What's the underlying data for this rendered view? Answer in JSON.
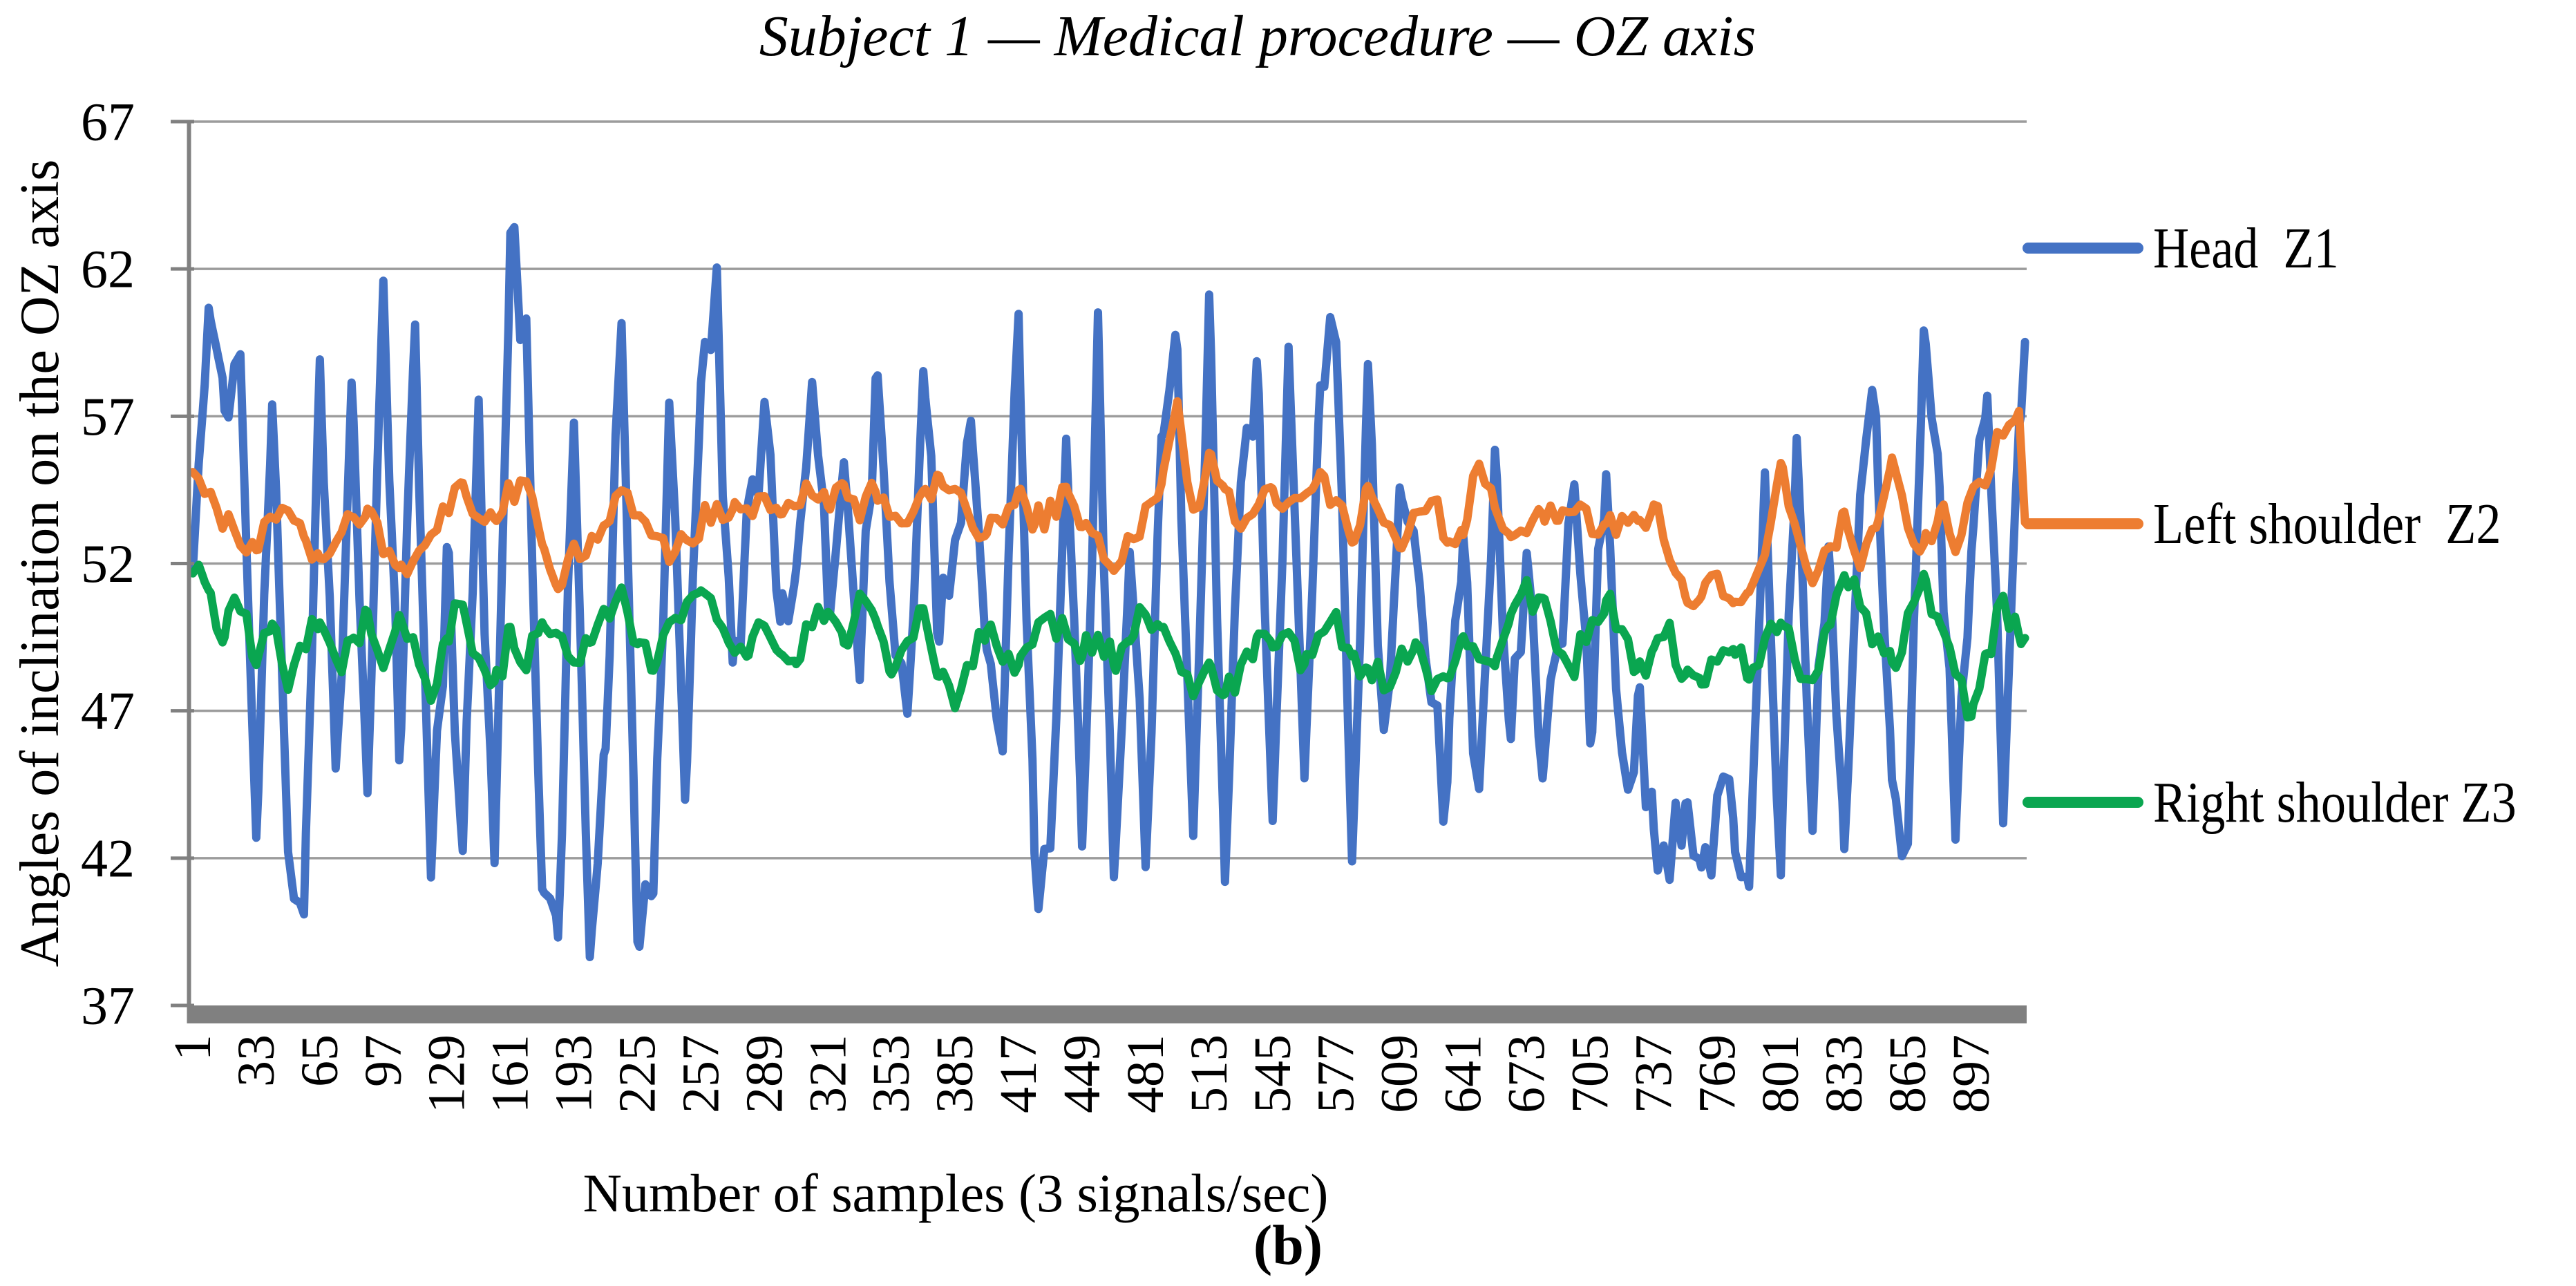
{
  "title": "Subject 1 — Medical procedure — OZ axis",
  "caption": "(b)",
  "colors": {
    "blue": "#4472C4",
    "orange": "#ED7D31",
    "green": "#0AA650",
    "grid": "#9C9C9C",
    "axis": "#808080",
    "text": "#000000"
  },
  "chart_data": {
    "type": "line",
    "title": "Subject 1 — Medical procedure — OZ axis",
    "xlabel": "Number of samples (3 signals/sec)",
    "ylabel": "Angles of inclination on the OZ axis",
    "ylim": [
      37,
      67
    ],
    "yticks": [
      37,
      42,
      47,
      52,
      57,
      62,
      67
    ],
    "xticks": [
      1,
      33,
      65,
      97,
      129,
      161,
      193,
      225,
      257,
      289,
      321,
      353,
      385,
      417,
      449,
      481,
      513,
      545,
      577,
      609,
      641,
      673,
      705,
      737,
      769,
      801,
      833,
      865,
      897
    ],
    "x_range": [
      1,
      924
    ],
    "grid": "horizontal",
    "legend_position": "right",
    "anchor_start": 1,
    "anchor_step": 8,
    "series": [
      {
        "name": "Head  Z1",
        "color": "#4472C4",
        "noise_amplitude": 1.7,
        "noise_step": 3,
        "anchors": [
          53,
          61.5,
          56,
          58.5,
          44,
          57,
          42,
          38.7,
          59,
          45,
          57.5,
          44,
          60.5,
          46,
          60.8,
          42,
          52,
          41.5,
          56,
          42,
          63,
          59,
          42,
          40,
          58,
          39.5,
          45,
          61.5,
          40,
          39.7,
          57,
          44,
          57,
          60.5,
          48,
          53,
          57,
          49,
          53,
          59,
          51,
          56,
          49,
          58,
          52,
          46,
          58,
          50,
          53,
          57,
          50,
          46,
          61,
          42,
          41,
          56,
          42,
          60,
          41.5,
          52,
          42,
          57,
          59,
          42,
          60.5,
          41,
          55,
          59,
          44,
          58,
          44,
          58,
          61,
          43,
          58,
          45,
          55,
          51,
          47,
          44,
          53,
          43,
          56,
          46,
          52,
          45,
          50,
          53,
          46,
          56,
          44,
          47,
          42,
          41.5,
          44,
          41,
          43,
          44,
          41,
          55,
          41,
          57,
          44,
          52,
          41.5,
          55,
          57,
          44,
          42,
          59,
          55,
          43,
          53,
          58,
          44,
          58,
          60
        ]
      },
      {
        "name": "Left shoulder  Z2",
        "color": "#ED7D31",
        "noise_amplitude": 0.5,
        "noise_step": 3,
        "anchors": [
          54.8,
          54.2,
          53.6,
          53,
          52.6,
          53.4,
          54.2,
          52.8,
          52.2,
          52.8,
          53.4,
          54.2,
          52.6,
          51.8,
          52.4,
          53,
          53.8,
          54.4,
          53.2,
          53.6,
          54.4,
          54.8,
          52.6,
          51.6,
          52.2,
          52.8,
          53.4,
          54.2,
          53.6,
          53,
          52.4,
          52.8,
          53.4,
          54,
          53.6,
          54,
          54.4,
          53.8,
          54.2,
          54.6,
          54,
          54.6,
          53.8,
          54.4,
          53.8,
          53.2,
          54.2,
          54.8,
          54.2,
          53.6,
          53,
          53.8,
          54.4,
          53.4,
          53.8,
          54.4,
          53.2,
          52.6,
          52,
          52.8,
          53.6,
          54.6,
          57.6,
          53.4,
          55.6,
          54.2,
          53.4,
          54,
          54.6,
          53.6,
          54.4,
          55.2,
          53.8,
          53,
          54.2,
          53.2,
          52.8,
          53.6,
          54.4,
          53,
          52.6,
          55.6,
          53.6,
          52.8,
          53.2,
          53.8,
          53.2,
          54,
          53.4,
          53,
          53.6,
          53.2,
          53.8,
          52.4,
          51.2,
          50.8,
          51.4,
          50.8,
          51.2,
          52.6,
          55,
          53.2,
          51.4,
          52.4,
          53.6,
          51.8,
          53,
          55.8,
          53.4,
          52.6,
          53.8,
          52.8,
          54,
          55.2,
          56.6,
          57.6,
          53.8
        ]
      },
      {
        "name": "Right shoulder Z3",
        "color": "#0AA650",
        "noise_amplitude": 0.55,
        "noise_step": 3,
        "anchors": [
          52,
          50.6,
          49.6,
          50.8,
          48.6,
          49.8,
          48.2,
          49.4,
          50.4,
          48.6,
          49.2,
          50,
          48.2,
          50.4,
          49,
          47.6,
          49.8,
          50.4,
          48.6,
          47.8,
          49.6,
          48.4,
          50.2,
          49.4,
          48.8,
          49.2,
          50.4,
          50.8,
          49.4,
          48.8,
          49.6,
          50.2,
          50.8,
          50.4,
          49.6,
          48.8,
          50.2,
          49.4,
          48.8,
          49.8,
          50.4,
          49.2,
          50.6,
          49.8,
          48.6,
          49.2,
          50.2,
          48.4,
          47.4,
          48.6,
          49.8,
          49.2,
          48.6,
          49.4,
          50.2,
          49.6,
          48.8,
          49.8,
          48.6,
          49.2,
          50.6,
          49.4,
          48.8,
          48,
          48.8,
          47.6,
          48.4,
          49.6,
          48.8,
          49.8,
          48.6,
          49.2,
          49.8,
          48.4,
          48.8,
          47.8,
          48.6,
          49.4,
          47.6,
          48.4,
          49.6,
          48.8,
          48,
          50.2,
          51.2,
          50.4,
          49.4,
          48.6,
          49.8,
          51,
          49.6,
          48.4,
          48.8,
          49.6,
          48.2,
          47.6,
          48.8,
          49.6,
          48.4,
          49.2,
          50,
          48.8,
          47.8,
          50.2,
          51.8,
          50.4,
          49.2,
          48.4,
          49.8,
          51.4,
          49.6,
          48.2,
          47,
          49,
          50.6,
          49.8,
          49.6
        ]
      }
    ]
  }
}
